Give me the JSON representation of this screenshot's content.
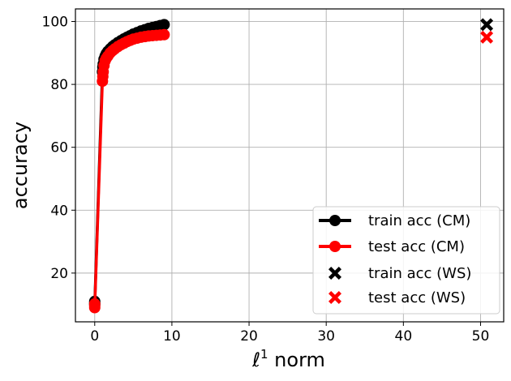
{
  "chart_data": {
    "type": "line",
    "xlabel_italic": "ℓ",
    "xlabel_sup": "1",
    "xlabel_rest": " norm",
    "ylabel": "accuracy",
    "xlim": [
      -2.5,
      53
    ],
    "ylim": [
      4.5,
      104
    ],
    "xticks": [
      0,
      10,
      20,
      30,
      40,
      50
    ],
    "yticks": [
      20,
      40,
      60,
      80,
      100
    ],
    "grid": true,
    "legend_placement": "bottom-right",
    "series": [
      {
        "name": "train acc (CM)",
        "color": "#000000",
        "marker": "circle",
        "line": true,
        "x": [
          0,
          0,
          0,
          1.0,
          1.05,
          1.1,
          1.2,
          1.35,
          1.5,
          1.7,
          2.0,
          2.3,
          2.6,
          3.0,
          3.4,
          3.8,
          4.2,
          4.6,
          5.0,
          5.5,
          6.0,
          6.5,
          7.0,
          7.5,
          8.0,
          8.5,
          9.0
        ],
        "y": [
          10.5,
          11.0,
          10.0,
          84.0,
          85.5,
          86.5,
          88.0,
          89.0,
          89.8,
          90.5,
          91.3,
          92.0,
          92.6,
          93.3,
          93.9,
          94.5,
          95.0,
          95.5,
          96.0,
          96.5,
          97.0,
          97.4,
          97.8,
          98.1,
          98.4,
          98.7,
          99.0
        ]
      },
      {
        "name": "test acc (CM)",
        "color": "#ff0000",
        "marker": "circle",
        "line": true,
        "x": [
          0,
          0,
          0,
          1.0,
          1.05,
          1.1,
          1.2,
          1.35,
          1.5,
          1.7,
          2.0,
          2.3,
          2.6,
          3.0,
          3.4,
          3.8,
          4.2,
          4.6,
          5.0,
          5.5,
          6.0,
          6.5,
          7.0,
          7.5,
          8.0,
          8.5,
          9.0
        ],
        "y": [
          9.5,
          10.2,
          9.0,
          81.0,
          82.5,
          84.0,
          86.0,
          87.5,
          88.3,
          89.0,
          90.0,
          90.7,
          91.3,
          92.0,
          92.6,
          93.1,
          93.6,
          94.0,
          94.4,
          94.7,
          95.0,
          95.2,
          95.4,
          95.5,
          95.6,
          95.7,
          95.8
        ]
      },
      {
        "name": "train acc (WS)",
        "color": "#000000",
        "marker": "X",
        "line": false,
        "x": [
          50.8
        ],
        "y": [
          99.0
        ]
      },
      {
        "name": "test acc (WS)",
        "color": "#ff0000",
        "marker": "X",
        "line": false,
        "x": [
          50.8
        ],
        "y": [
          95.0
        ]
      }
    ]
  }
}
